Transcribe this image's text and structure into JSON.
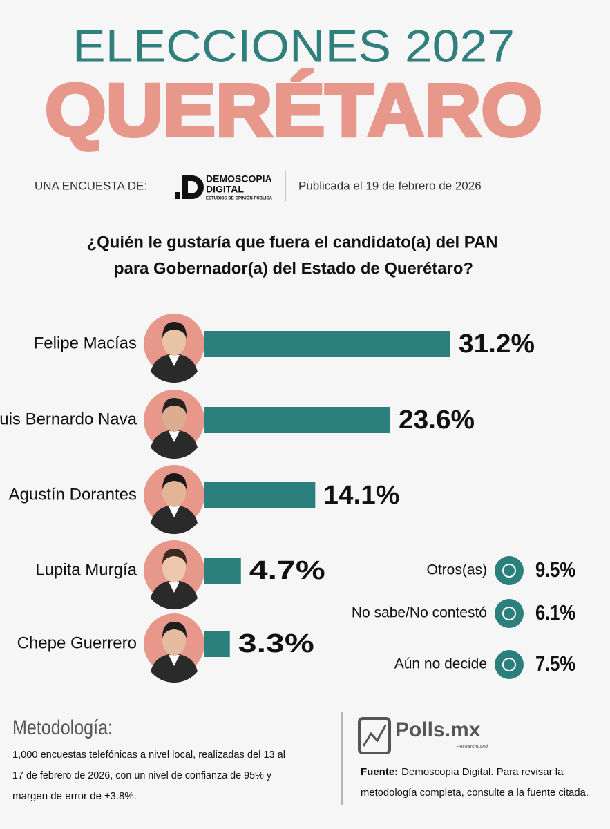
{
  "header": {
    "title": "ELECCIONES 2027",
    "subtitle": "QUERÉTARO",
    "survey_by": "UNA ENCUESTA DE:",
    "logo": {
      "line1": "DEMOSCOPIA",
      "line2": "DIGITAL",
      "line3": "ESTUDIOS DE OPINIÓN PÚBLICA"
    },
    "published": "Publicada el 19 de febrero de 2026"
  },
  "chart_data": {
    "type": "bar",
    "orientation": "horizontal",
    "title_lines": [
      "¿Quién le gustaría que fuera el candidato(a) del PAN",
      "para Gobernador(a) del Estado de Querétaro?"
    ],
    "categories": [
      "Felipe Macías",
      "Luis Bernardo Nava",
      "Agustín Dorantes",
      "Lupita Murgía",
      "Chepe Guerrero"
    ],
    "values": [
      31.2,
      23.6,
      14.1,
      4.7,
      3.3
    ],
    "value_labels": [
      "31.2%",
      "23.6%",
      "14.1%",
      "4.7%",
      "3.3%"
    ],
    "color": "#2b7f7c"
  },
  "others": [
    {
      "label": "Otros(as)",
      "value": "9.5%"
    },
    {
      "label": "No sabe/No contestó",
      "value": "6.1%"
    },
    {
      "label": "Aún no decide",
      "value": "7.5%"
    }
  ],
  "methodology": {
    "title": "Metodología:",
    "lines": [
      "1,000 encuestas telefónicas a nivel local, realizadas del 13 al",
      "17 de febrero de 2026, con un nivel de confianza de 95% y",
      "margen de error de ±3.8%."
    ]
  },
  "source": {
    "brand": "Polls.mx",
    "brand_sub": "ResearchLand",
    "label": "Fuente:",
    "line1": "Demoscopia Digital. Para revisar la",
    "line2": "metodología completa, consulte a la fuente citada."
  }
}
